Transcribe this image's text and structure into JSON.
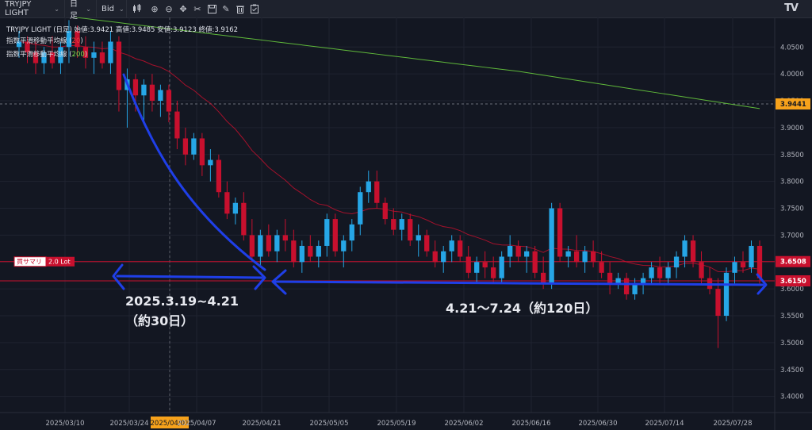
{
  "toolbar": {
    "symbol": "TRYJPY LIGHT",
    "interval": "日足",
    "price_type": "Bid",
    "icons": [
      "candle-type-icon",
      "zoom-in-icon",
      "zoom-out-icon",
      "crosshair-move-icon",
      "scissors-icon",
      "save-icon",
      "pencil-icon",
      "trash-icon",
      "clipboard-icon"
    ],
    "logo": "TV"
  },
  "legend": {
    "header": "TRYJPY LIGHT (日足) 始値:3.9421 高値:3.9485 安値:3.9123 終値:3.9162",
    "ema1_label": "指数平滑移動平均線 (",
    "ema1_period": "20",
    "ema2_label": "指数平滑移動平均線 (",
    "ema2_period": "200",
    "close_paren": ")",
    "ema1_color": "#e84040",
    "ema2_color": "#7ee04a"
  },
  "position": {
    "side": "買サマリ",
    "lot": "2.0 Lot",
    "price": "3.6508"
  },
  "annotations": {
    "range1_line1": "2025.3.19~4.21",
    "range1_line2": "（約30日）",
    "range2": "4.21～7.24（約120日）"
  },
  "chart_data": {
    "type": "candlestick",
    "y_tick_labels": [
      "4.0500",
      "4.0000",
      "3.9500",
      "3.9000",
      "3.8500",
      "3.8000",
      "3.7500",
      "3.7000",
      "3.6500",
      "3.6000",
      "3.5500",
      "3.5000",
      "3.4500",
      "3.4000"
    ],
    "ylim": [
      3.37,
      4.105
    ],
    "x_tick_labels": [
      "2025/03/10",
      "2025/03/24",
      "2025/04/01",
      "2025/04/07",
      "2025/04/21",
      "2025/05/05",
      "2025/05/19",
      "2025/06/02",
      "2025/06/16",
      "2025/06/30",
      "2025/07/14",
      "2025/07/28"
    ],
    "highlighted_x_label": "2025/04/01",
    "last_price": "3.9441",
    "horizontal_line_price": "3.6150",
    "position_price": 3.6508,
    "colors": {
      "up": "#26a6e6",
      "down": "#c8102e",
      "bg": "#131722"
    },
    "candles": [
      [
        4.05,
        4.08,
        4.03,
        4.06
      ],
      [
        4.06,
        4.07,
        4.02,
        4.04
      ],
      [
        4.04,
        4.06,
        4.0,
        4.02
      ],
      [
        4.02,
        4.05,
        4.0,
        4.04
      ],
      [
        4.04,
        4.07,
        4.01,
        4.02
      ],
      [
        4.02,
        4.06,
        4.0,
        4.05
      ],
      [
        4.05,
        4.1,
        4.02,
        4.08
      ],
      [
        4.08,
        4.09,
        4.03,
        4.05
      ],
      [
        4.05,
        4.07,
        4.01,
        4.03
      ],
      [
        4.03,
        4.06,
        4.0,
        4.04
      ],
      [
        4.04,
        4.06,
        4.01,
        4.02
      ],
      [
        4.02,
        4.08,
        4.0,
        4.06
      ],
      [
        4.06,
        4.07,
        3.93,
        3.97
      ],
      [
        3.97,
        4.01,
        3.9,
        3.99
      ],
      [
        3.99,
        4.0,
        3.93,
        3.96
      ],
      [
        3.96,
        3.99,
        3.91,
        3.98
      ],
      [
        3.98,
        4.0,
        3.93,
        3.95
      ],
      [
        3.95,
        3.98,
        3.92,
        3.97
      ],
      [
        3.97,
        3.98,
        3.91,
        3.93
      ],
      [
        3.93,
        3.95,
        3.86,
        3.88
      ],
      [
        3.88,
        3.9,
        3.83,
        3.85
      ],
      [
        3.85,
        3.89,
        3.84,
        3.88
      ],
      [
        3.88,
        3.89,
        3.81,
        3.83
      ],
      [
        3.83,
        3.86,
        3.8,
        3.84
      ],
      [
        3.84,
        3.85,
        3.77,
        3.78
      ],
      [
        3.78,
        3.8,
        3.73,
        3.74
      ],
      [
        3.74,
        3.77,
        3.72,
        3.76
      ],
      [
        3.76,
        3.78,
        3.69,
        3.7
      ],
      [
        3.7,
        3.73,
        3.65,
        3.66
      ],
      [
        3.66,
        3.71,
        3.64,
        3.7
      ],
      [
        3.7,
        3.72,
        3.66,
        3.67
      ],
      [
        3.67,
        3.71,
        3.65,
        3.7
      ],
      [
        3.7,
        3.73,
        3.67,
        3.69
      ],
      [
        3.69,
        3.71,
        3.64,
        3.65
      ],
      [
        3.65,
        3.69,
        3.63,
        3.68
      ],
      [
        3.68,
        3.7,
        3.65,
        3.66
      ],
      [
        3.66,
        3.69,
        3.64,
        3.68
      ],
      [
        3.68,
        3.74,
        3.66,
        3.73
      ],
      [
        3.73,
        3.74,
        3.66,
        3.67
      ],
      [
        3.67,
        3.7,
        3.64,
        3.69
      ],
      [
        3.69,
        3.73,
        3.67,
        3.72
      ],
      [
        3.72,
        3.79,
        3.7,
        3.78
      ],
      [
        3.78,
        3.82,
        3.76,
        3.8
      ],
      [
        3.8,
        3.82,
        3.75,
        3.76
      ],
      [
        3.76,
        3.77,
        3.72,
        3.73
      ],
      [
        3.73,
        3.75,
        3.7,
        3.71
      ],
      [
        3.71,
        3.74,
        3.69,
        3.73
      ],
      [
        3.73,
        3.74,
        3.68,
        3.69
      ],
      [
        3.69,
        3.72,
        3.66,
        3.7
      ],
      [
        3.7,
        3.71,
        3.66,
        3.67
      ],
      [
        3.67,
        3.69,
        3.64,
        3.65
      ],
      [
        3.65,
        3.68,
        3.63,
        3.67
      ],
      [
        3.67,
        3.7,
        3.65,
        3.69
      ],
      [
        3.69,
        3.7,
        3.65,
        3.66
      ],
      [
        3.66,
        3.68,
        3.62,
        3.63
      ],
      [
        3.63,
        3.66,
        3.61,
        3.65
      ],
      [
        3.65,
        3.67,
        3.62,
        3.64
      ],
      [
        3.64,
        3.66,
        3.61,
        3.62
      ],
      [
        3.62,
        3.67,
        3.61,
        3.66
      ],
      [
        3.66,
        3.7,
        3.64,
        3.68
      ],
      [
        3.68,
        3.69,
        3.65,
        3.66
      ],
      [
        3.66,
        3.68,
        3.63,
        3.67
      ],
      [
        3.67,
        3.68,
        3.62,
        3.63
      ],
      [
        3.63,
        3.66,
        3.6,
        3.61
      ],
      [
        3.61,
        3.76,
        3.6,
        3.75
      ],
      [
        3.75,
        3.76,
        3.65,
        3.66
      ],
      [
        3.66,
        3.68,
        3.64,
        3.67
      ],
      [
        3.67,
        3.7,
        3.64,
        3.65
      ],
      [
        3.65,
        3.68,
        3.63,
        3.67
      ],
      [
        3.67,
        3.69,
        3.64,
        3.65
      ],
      [
        3.65,
        3.67,
        3.62,
        3.63
      ],
      [
        3.63,
        3.65,
        3.59,
        3.61
      ],
      [
        3.61,
        3.63,
        3.6,
        3.62
      ],
      [
        3.62,
        3.63,
        3.58,
        3.59
      ],
      [
        3.59,
        3.62,
        3.58,
        3.61
      ],
      [
        3.61,
        3.63,
        3.59,
        3.62
      ],
      [
        3.62,
        3.65,
        3.61,
        3.64
      ],
      [
        3.64,
        3.66,
        3.61,
        3.62
      ],
      [
        3.62,
        3.65,
        3.61,
        3.64
      ],
      [
        3.64,
        3.67,
        3.62,
        3.66
      ],
      [
        3.66,
        3.7,
        3.64,
        3.69
      ],
      [
        3.69,
        3.7,
        3.64,
        3.65
      ],
      [
        3.65,
        3.67,
        3.61,
        3.62
      ],
      [
        3.62,
        3.64,
        3.59,
        3.6
      ],
      [
        3.6,
        3.62,
        3.49,
        3.55
      ],
      [
        3.55,
        3.64,
        3.54,
        3.63
      ],
      [
        3.63,
        3.66,
        3.61,
        3.65
      ],
      [
        3.65,
        3.67,
        3.63,
        3.64
      ],
      [
        3.64,
        3.69,
        3.63,
        3.68
      ],
      [
        3.68,
        3.69,
        3.61,
        3.62
      ]
    ]
  }
}
